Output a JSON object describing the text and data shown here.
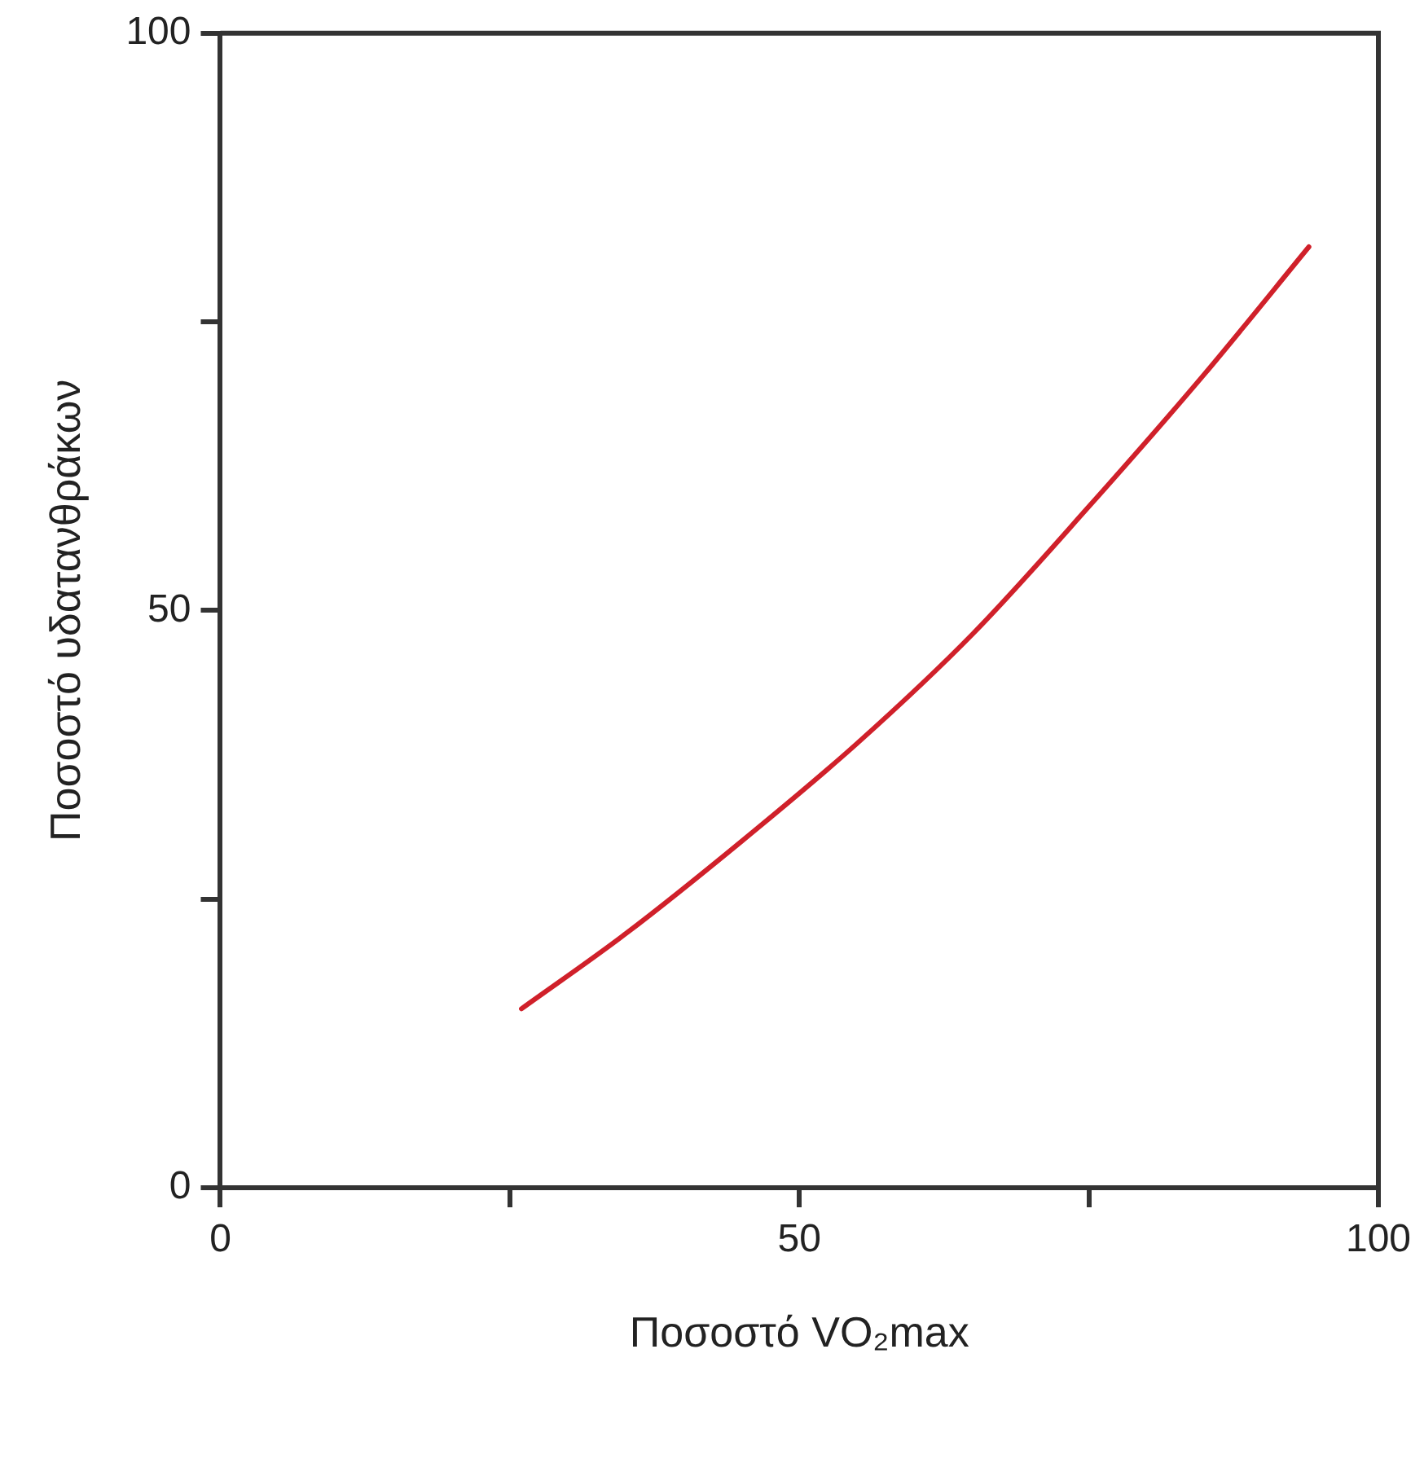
{
  "chart_data": {
    "type": "line",
    "xlabel": "Ποσοστό VO₂max",
    "ylabel": "Ποσοστό υδατανθράκων",
    "x": [
      26,
      35,
      45,
      55,
      65,
      75,
      85,
      94
    ],
    "series": [
      {
        "color": "#d0202a",
        "values": [
          15.5,
          22,
          30,
          38.5,
          48,
          59,
          70.5,
          81.5
        ]
      }
    ],
    "xlim": [
      0,
      100
    ],
    "ylim": [
      0,
      100
    ],
    "xticks": [
      0,
      {
        "value": 25,
        "label": null
      },
      50,
      {
        "value": 75,
        "label": null
      },
      100
    ],
    "yticks": [
      0,
      {
        "value": 25,
        "label": null
      },
      50,
      {
        "value": 75,
        "label": null
      },
      100
    ],
    "grid": false,
    "legend": false,
    "marker": "none",
    "line_style": "solid"
  }
}
